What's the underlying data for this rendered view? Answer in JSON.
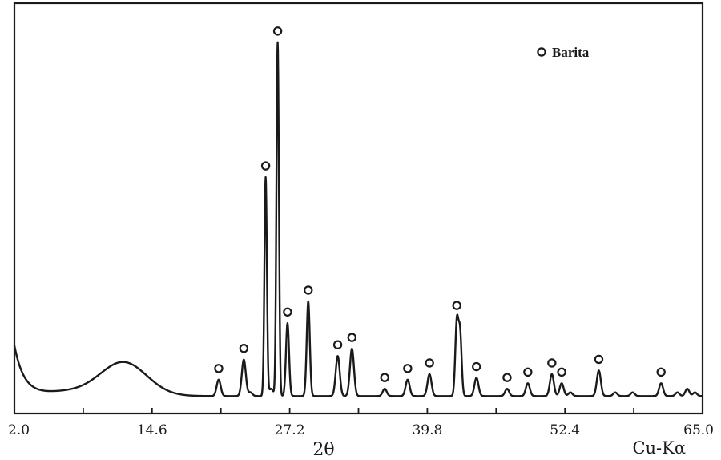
{
  "chart_data": {
    "type": "line",
    "title": "",
    "xlabel": "2θ",
    "xunit_label": "Cu-Kα",
    "ylabel": "",
    "xlim": [
      2.0,
      65.0
    ],
    "ylim": [
      0,
      100
    ],
    "xticks": [
      "2.0",
      "14.6",
      "27.2",
      "39.8",
      "52.4",
      "65.0"
    ],
    "grid": false,
    "legend": {
      "position": "top-right",
      "marker": "o",
      "label": "Barita"
    },
    "background": {
      "start": 13.7,
      "low_x": [
        5.0,
        8.0,
        11.0,
        14.0,
        17.0,
        20.0
      ],
      "low_y": [
        8.5,
        6.0,
        9.0,
        9.2,
        2.0,
        0.8
      ]
    },
    "series": [
      {
        "name": "Barita",
        "peaks": [
          {
            "x": 20.7,
            "y": 4.5,
            "marker": true
          },
          {
            "x": 23.0,
            "y": 10.0,
            "marker": true
          },
          {
            "x": 23.6,
            "y": 1.0,
            "marker": false
          },
          {
            "x": 25.0,
            "y": 60.0,
            "marker": true
          },
          {
            "x": 25.5,
            "y": 2.0,
            "marker": false
          },
          {
            "x": 26.1,
            "y": 97.0,
            "marker": true
          },
          {
            "x": 27.0,
            "y": 20.0,
            "marker": true
          },
          {
            "x": 28.9,
            "y": 26.0,
            "marker": true
          },
          {
            "x": 31.6,
            "y": 11.0,
            "marker": true
          },
          {
            "x": 32.9,
            "y": 13.0,
            "marker": true
          },
          {
            "x": 35.9,
            "y": 2.0,
            "marker": true
          },
          {
            "x": 38.0,
            "y": 4.5,
            "marker": true
          },
          {
            "x": 40.0,
            "y": 6.0,
            "marker": true
          },
          {
            "x": 42.5,
            "y": 20.0,
            "marker": true
          },
          {
            "x": 42.8,
            "y": 17.0,
            "marker": false
          },
          {
            "x": 44.3,
            "y": 5.0,
            "marker": true
          },
          {
            "x": 47.1,
            "y": 2.0,
            "marker": true
          },
          {
            "x": 49.0,
            "y": 3.5,
            "marker": true
          },
          {
            "x": 51.2,
            "y": 6.0,
            "marker": true
          },
          {
            "x": 52.1,
            "y": 3.5,
            "marker": true
          },
          {
            "x": 52.9,
            "y": 1.0,
            "marker": false
          },
          {
            "x": 55.5,
            "y": 7.0,
            "marker": true
          },
          {
            "x": 57.0,
            "y": 1.0,
            "marker": false
          },
          {
            "x": 58.6,
            "y": 1.0,
            "marker": false
          },
          {
            "x": 61.2,
            "y": 3.5,
            "marker": true
          },
          {
            "x": 62.7,
            "y": 1.0,
            "marker": false
          },
          {
            "x": 63.6,
            "y": 2.0,
            "marker": false
          },
          {
            "x": 64.3,
            "y": 1.0,
            "marker": false
          }
        ]
      }
    ]
  }
}
